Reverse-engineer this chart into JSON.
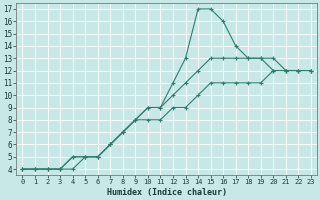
{
  "background_color": "#c8e8e8",
  "grid_color": "#ffffff",
  "line_color": "#2e7d6e",
  "xlabel": "Humidex (Indice chaleur)",
  "xlim": [
    -0.5,
    23.5
  ],
  "ylim": [
    3.5,
    17.5
  ],
  "xticks": [
    0,
    1,
    2,
    3,
    4,
    5,
    6,
    7,
    8,
    9,
    10,
    11,
    12,
    13,
    14,
    15,
    16,
    17,
    18,
    19,
    20,
    21,
    22,
    23
  ],
  "yticks": [
    4,
    5,
    6,
    7,
    8,
    9,
    10,
    11,
    12,
    13,
    14,
    15,
    16,
    17
  ],
  "series": [
    {
      "x": [
        0,
        1,
        2,
        3,
        4,
        5,
        6,
        7,
        8,
        9,
        10,
        11,
        12,
        13,
        14,
        15,
        16,
        17,
        18,
        19,
        20,
        21,
        22,
        23
      ],
      "y": [
        4,
        4,
        4,
        4,
        5,
        5,
        5,
        6,
        7,
        8,
        9,
        9,
        11,
        13,
        17,
        17,
        16,
        14,
        13,
        13,
        13,
        12,
        12,
        12
      ]
    },
    {
      "x": [
        0,
        1,
        2,
        3,
        4,
        5,
        6,
        7,
        8,
        9,
        10,
        11,
        12,
        13,
        14,
        15,
        16,
        17,
        18,
        19,
        20,
        21,
        22,
        23
      ],
      "y": [
        4,
        4,
        4,
        4,
        5,
        5,
        5,
        6,
        7,
        8,
        9,
        9,
        10,
        11,
        12,
        13,
        13,
        13,
        13,
        13,
        12,
        12,
        12,
        12
      ]
    },
    {
      "x": [
        0,
        1,
        2,
        3,
        4,
        5,
        6,
        7,
        8,
        9,
        10,
        11,
        12,
        13,
        14,
        15,
        16,
        17,
        18,
        19,
        20,
        21,
        22,
        23
      ],
      "y": [
        4,
        4,
        4,
        4,
        4,
        5,
        5,
        6,
        7,
        8,
        8,
        8,
        9,
        9,
        10,
        11,
        11,
        11,
        11,
        11,
        12,
        12,
        12,
        12
      ]
    }
  ]
}
